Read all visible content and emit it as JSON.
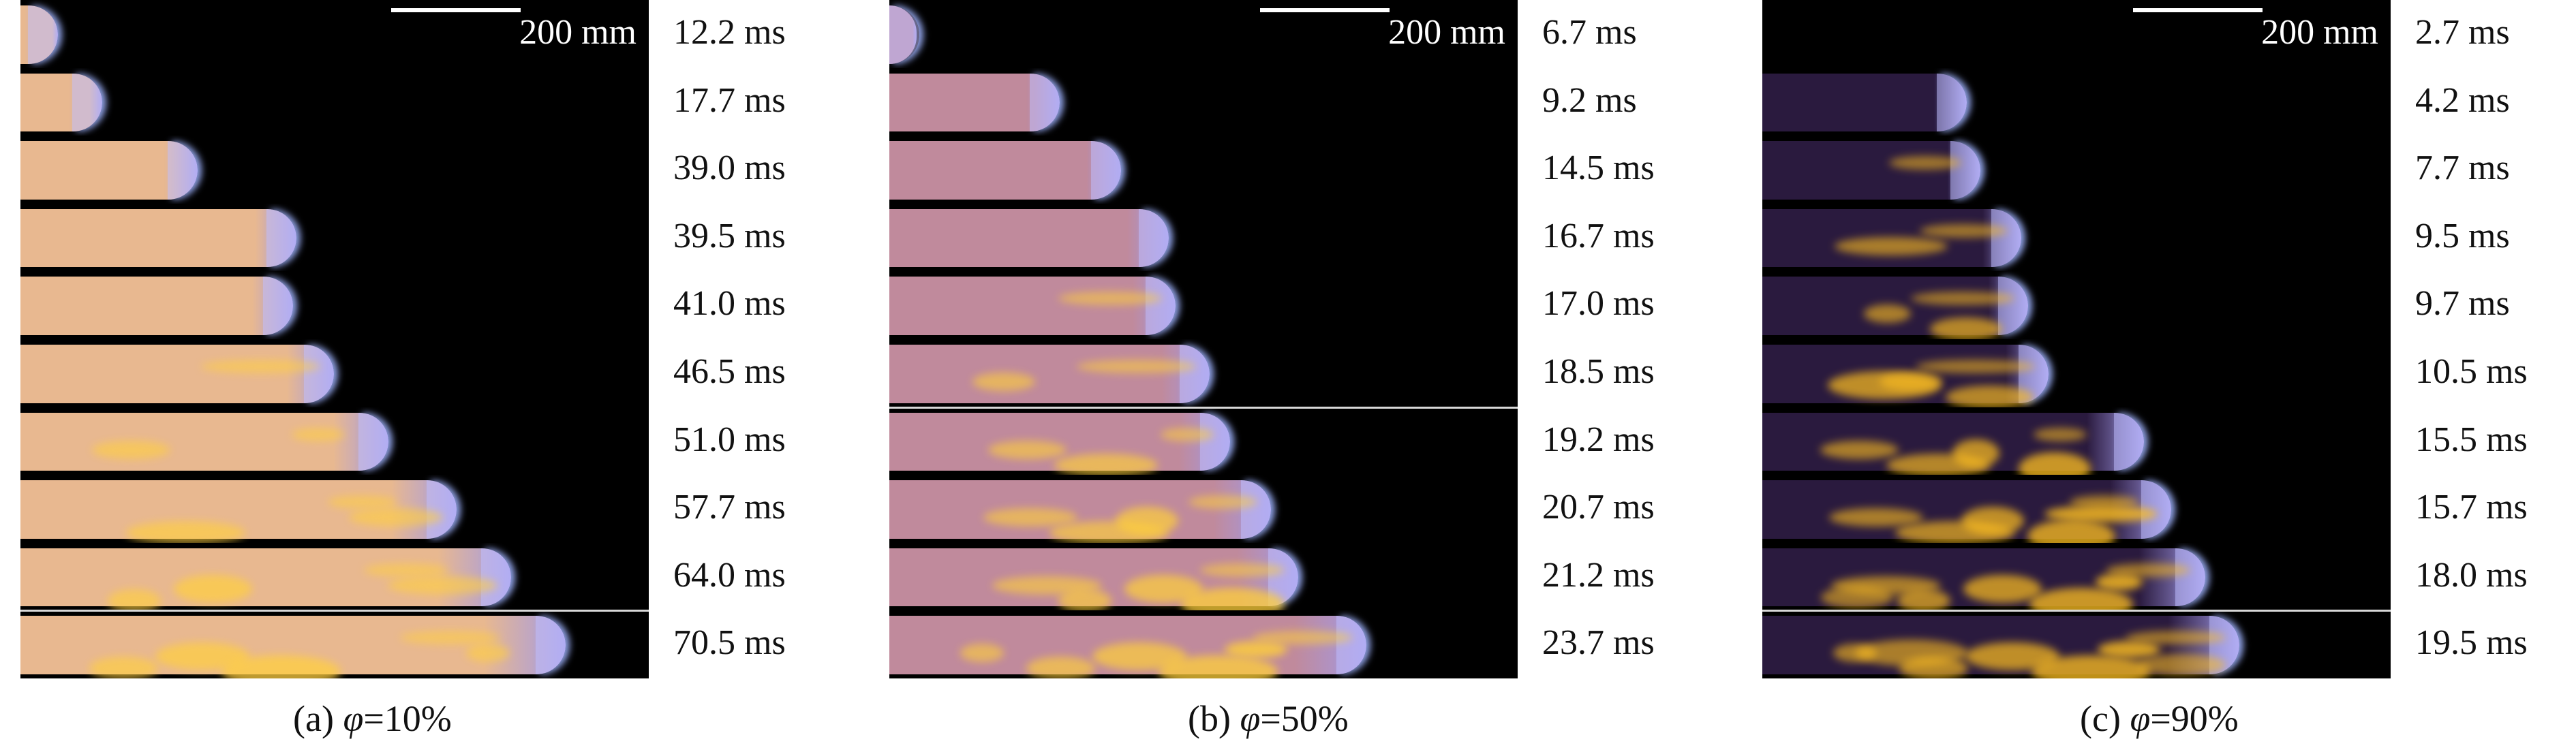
{
  "scale_label": "200 mm",
  "panels": [
    {
      "caption_prefix": "(a) ",
      "caption_symbol": "φ",
      "caption_value": "=10%",
      "times": [
        "12.2 ms",
        "17.7 ms",
        "39.0 ms",
        "39.5 ms",
        "41.0 ms",
        "46.5 ms",
        "51.0 ms",
        "57.7 ms",
        "64.0 ms",
        "70.5 ms"
      ],
      "tube_color": "#e8b890",
      "glow_color": "#ffcf40"
    },
    {
      "caption_prefix": "(b) ",
      "caption_symbol": "φ",
      "caption_value": "=50%",
      "times": [
        "6.7 ms",
        "9.2 ms",
        "14.5 ms",
        "16.7 ms",
        "17.0 ms",
        "18.5 ms",
        "19.2 ms",
        "20.7 ms",
        "21.2 ms",
        "23.7 ms"
      ],
      "tube_color": "#c08a9c",
      "glow_color": "#ffd03a"
    },
    {
      "caption_prefix": "(c) ",
      "caption_symbol": "φ",
      "caption_value": "=90%",
      "times": [
        "2.7 ms",
        "4.2 ms",
        "7.7 ms",
        "9.5 ms",
        "9.7 ms",
        "10.5 ms",
        "15.5 ms",
        "15.7 ms",
        "18.0 ms",
        "19.5 ms"
      ],
      "tube_color": "#2a1a3e",
      "glow_color": "#ffc020"
    }
  ]
}
